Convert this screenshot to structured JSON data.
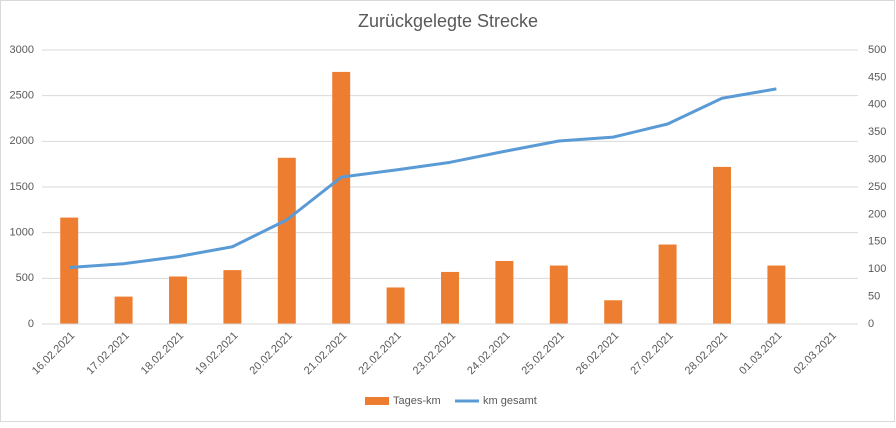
{
  "chart_data": {
    "type": "bar-line",
    "title": "Zurückgelegte Strecke",
    "categories": [
      "16.02.2021",
      "17.02.2021",
      "18.02.2021",
      "19.02.2021",
      "20.02.2021",
      "21.02.2021",
      "22.02.2021",
      "23.02.2021",
      "24.02.2021",
      "25.02.2021",
      "26.02.2021",
      "27.02.2021",
      "28.02.2021",
      "01.03.2021",
      "02.03.2021"
    ],
    "series": [
      {
        "name": "Tages-km",
        "type": "bar",
        "color": "#ed7d31",
        "values": [
          1165,
          300,
          520,
          590,
          1820,
          2760,
          400,
          570,
          690,
          640,
          260,
          870,
          1720,
          640,
          null
        ]
      },
      {
        "name": "km gesamt",
        "type": "line",
        "axis": "y2",
        "color": "#5b9bd5",
        "values": [
          103,
          110,
          123,
          141,
          190,
          268,
          281,
          295,
          315,
          334,
          341,
          365,
          412,
          429,
          null
        ]
      }
    ],
    "ylim": [
      0,
      3000
    ],
    "yticks": [
      0,
      500,
      1000,
      1500,
      2000,
      2500,
      3000
    ],
    "y2lim": [
      0,
      500
    ],
    "y2ticks": [
      0,
      50,
      100,
      150,
      200,
      250,
      300,
      350,
      400,
      450,
      500
    ],
    "grid": true,
    "legend": "bottom"
  }
}
